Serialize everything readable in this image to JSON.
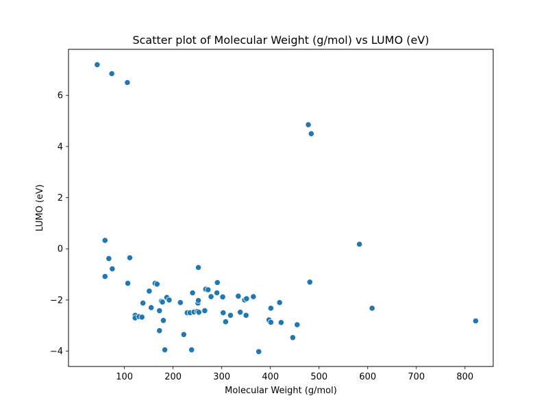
{
  "chart_data": {
    "type": "scatter",
    "title": "Scatter plot of Molecular Weight (g/mol) vs LUMO (eV)",
    "xlabel": "Molecular Weight (g/mol)",
    "ylabel": "LUMO (eV)",
    "xlim": [
      -15,
      858
    ],
    "ylim": [
      -4.6,
      7.8
    ],
    "xticks": [
      100,
      200,
      300,
      400,
      500,
      600,
      700,
      800
    ],
    "yticks": [
      -4,
      -2,
      0,
      2,
      4,
      6
    ],
    "grid": false,
    "point_color": "#1f77b4",
    "points": [
      [
        44,
        7.2
      ],
      [
        74,
        6.85
      ],
      [
        106,
        6.5
      ],
      [
        478,
        4.85
      ],
      [
        484,
        4.5
      ],
      [
        60,
        0.33
      ],
      [
        68,
        -0.38
      ],
      [
        75,
        -0.78
      ],
      [
        60,
        -1.08
      ],
      [
        111,
        -0.35
      ],
      [
        107,
        -1.35
      ],
      [
        583,
        0.18
      ],
      [
        481,
        -1.3
      ],
      [
        609,
        -2.32
      ],
      [
        822,
        -2.82
      ],
      [
        122,
        -2.6
      ],
      [
        122,
        -2.7
      ],
      [
        130,
        -2.65
      ],
      [
        136,
        -2.67
      ],
      [
        138,
        -2.12
      ],
      [
        151,
        -1.65
      ],
      [
        155,
        -2.3
      ],
      [
        163,
        -1.35
      ],
      [
        167,
        -1.38
      ],
      [
        172,
        -2.42
      ],
      [
        176,
        -2.05
      ],
      [
        178,
        -2.08
      ],
      [
        180,
        -2.8
      ],
      [
        172,
        -3.2
      ],
      [
        183,
        -3.95
      ],
      [
        187,
        -1.9
      ],
      [
        192,
        -2.0
      ],
      [
        215,
        -2.1
      ],
      [
        222,
        -3.35
      ],
      [
        229,
        -2.5
      ],
      [
        235,
        -2.5
      ],
      [
        240,
        -1.72
      ],
      [
        243,
        -2.47
      ],
      [
        250,
        -2.45
      ],
      [
        251,
        -2.12
      ],
      [
        252,
        -2.02
      ],
      [
        253,
        -2.48
      ],
      [
        252,
        -0.73
      ],
      [
        238,
        -3.95
      ],
      [
        265,
        -2.42
      ],
      [
        267,
        -1.58
      ],
      [
        272,
        -1.6
      ],
      [
        278,
        -1.87
      ],
      [
        290,
        -1.72
      ],
      [
        291,
        -1.32
      ],
      [
        302,
        -1.88
      ],
      [
        303,
        -2.5
      ],
      [
        308,
        -2.85
      ],
      [
        318,
        -2.6
      ],
      [
        334,
        -1.85
      ],
      [
        338,
        -2.48
      ],
      [
        347,
        -2.0
      ],
      [
        351,
        -1.95
      ],
      [
        350,
        -2.6
      ],
      [
        365,
        -1.87
      ],
      [
        376,
        -4.02
      ],
      [
        397,
        -2.78
      ],
      [
        401,
        -2.87
      ],
      [
        401,
        -2.32
      ],
      [
        419,
        -2.1
      ],
      [
        422,
        -2.88
      ],
      [
        446,
        -3.47
      ],
      [
        455,
        -2.97
      ]
    ]
  }
}
